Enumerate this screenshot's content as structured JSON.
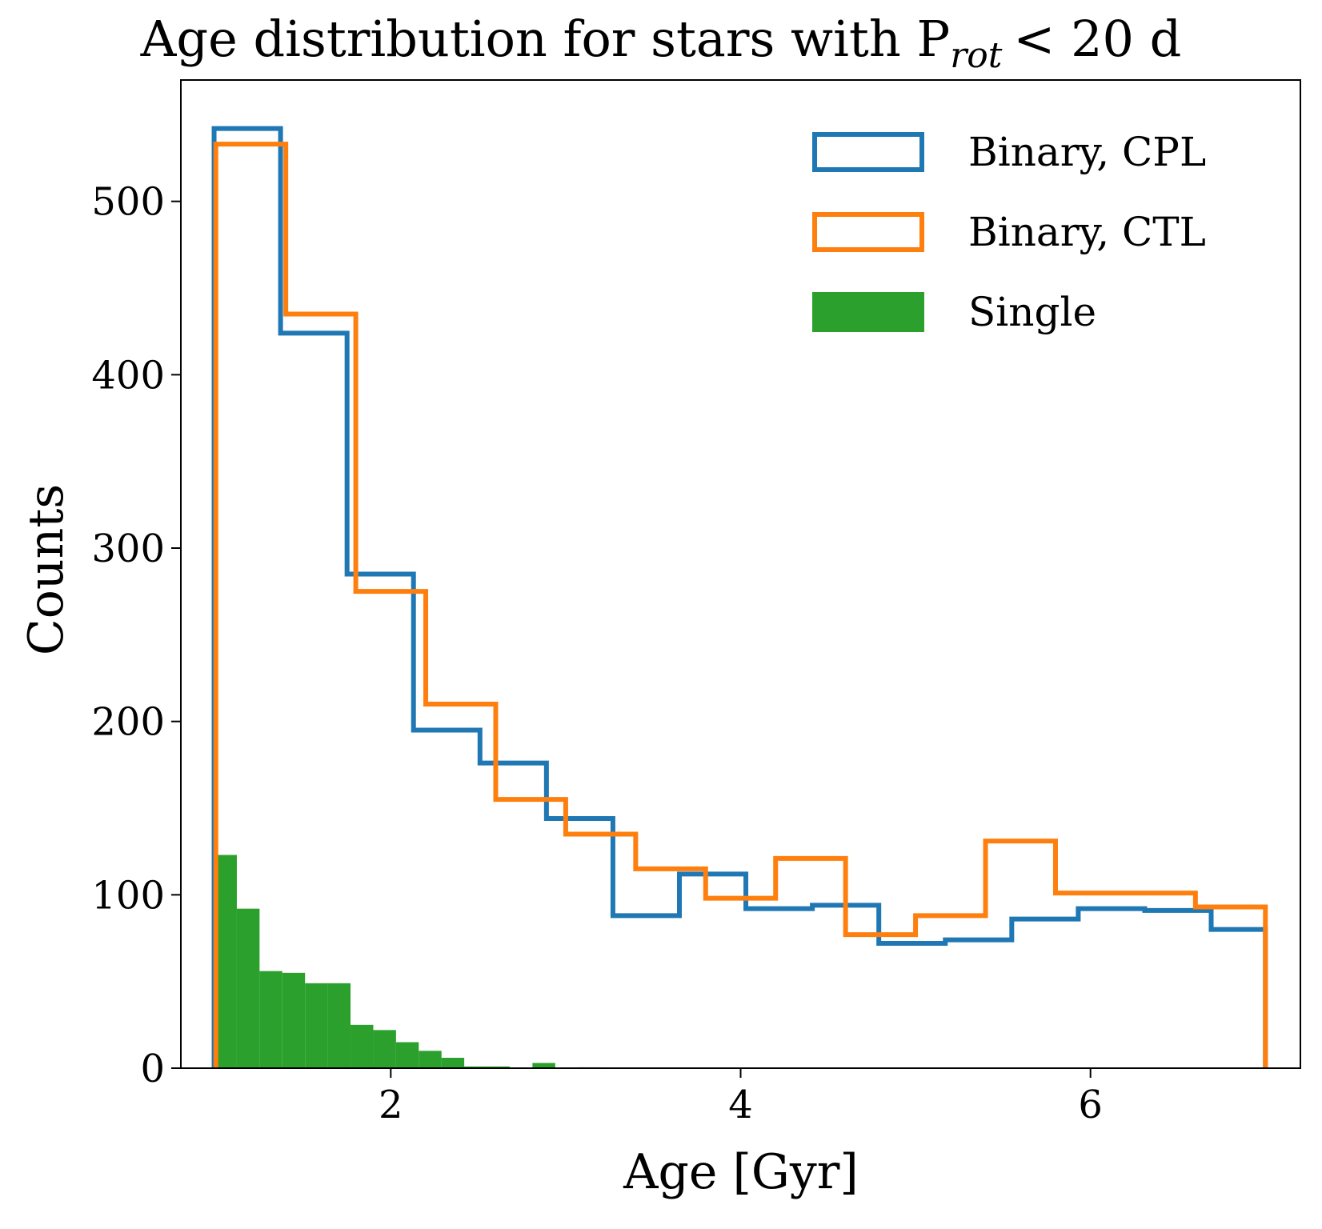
{
  "chart_data": {
    "type": "histogram",
    "title": "Age distribution for stars with P",
    "title_subscript": "rot",
    "title_suffix": "< 20 d",
    "xlabel": "Age [Gyr]",
    "ylabel": "Counts",
    "xlim": [
      0.8,
      7.2
    ],
    "ylim": [
      0,
      570
    ],
    "xticks": [
      2,
      4,
      6
    ],
    "xtick_labels": [
      "2",
      "4",
      "6"
    ],
    "yticks": [
      0,
      100,
      200,
      300,
      400,
      500
    ],
    "ytick_labels": [
      "0",
      "100",
      "200",
      "300",
      "400",
      "500"
    ],
    "grid": false,
    "legend": {
      "position": "top-right",
      "entries": [
        {
          "label": "Binary, CPL",
          "style": "step",
          "color": "#1f77b4"
        },
        {
          "label": "Binary, CTL",
          "style": "step",
          "color": "#ff7f0e"
        },
        {
          "label": "Single",
          "style": "filled",
          "color": "#2ca02c"
        }
      ]
    },
    "series": [
      {
        "name": "Binary, CPL",
        "histtype": "step",
        "color": "#1f77b4",
        "bin_edges": [
          0.99,
          1.37,
          1.75,
          2.13,
          2.51,
          2.89,
          3.27,
          3.65,
          4.03,
          4.41,
          4.79,
          5.17,
          5.55,
          5.93,
          6.31,
          6.69,
          7.0
        ],
        "counts": [
          542,
          424,
          285,
          195,
          176,
          144,
          88,
          112,
          92,
          94,
          72,
          74,
          86,
          92,
          91,
          80
        ]
      },
      {
        "name": "Binary, CTL",
        "histtype": "step",
        "color": "#ff7f0e",
        "bin_edges": [
          1.0,
          1.4,
          1.8,
          2.2,
          2.6,
          3.0,
          3.4,
          3.8,
          4.2,
          4.6,
          5.0,
          5.4,
          5.8,
          6.2,
          6.6,
          7.0
        ],
        "counts": [
          533,
          435,
          275,
          210,
          155,
          135,
          115,
          98,
          121,
          77,
          88,
          131,
          101,
          101,
          93
        ]
      },
      {
        "name": "Single",
        "histtype": "stepfilled",
        "color": "#2ca02c",
        "bin_edges": [
          0.99,
          1.12,
          1.25,
          1.38,
          1.51,
          1.64,
          1.77,
          1.9,
          2.03,
          2.16,
          2.29,
          2.42,
          2.55,
          2.68,
          2.81,
          2.94,
          3.07,
          3.2
        ],
        "counts": [
          123,
          92,
          56,
          55,
          49,
          49,
          25,
          22,
          15,
          10,
          6,
          1,
          1,
          0,
          3,
          0,
          0.5
        ]
      }
    ]
  }
}
